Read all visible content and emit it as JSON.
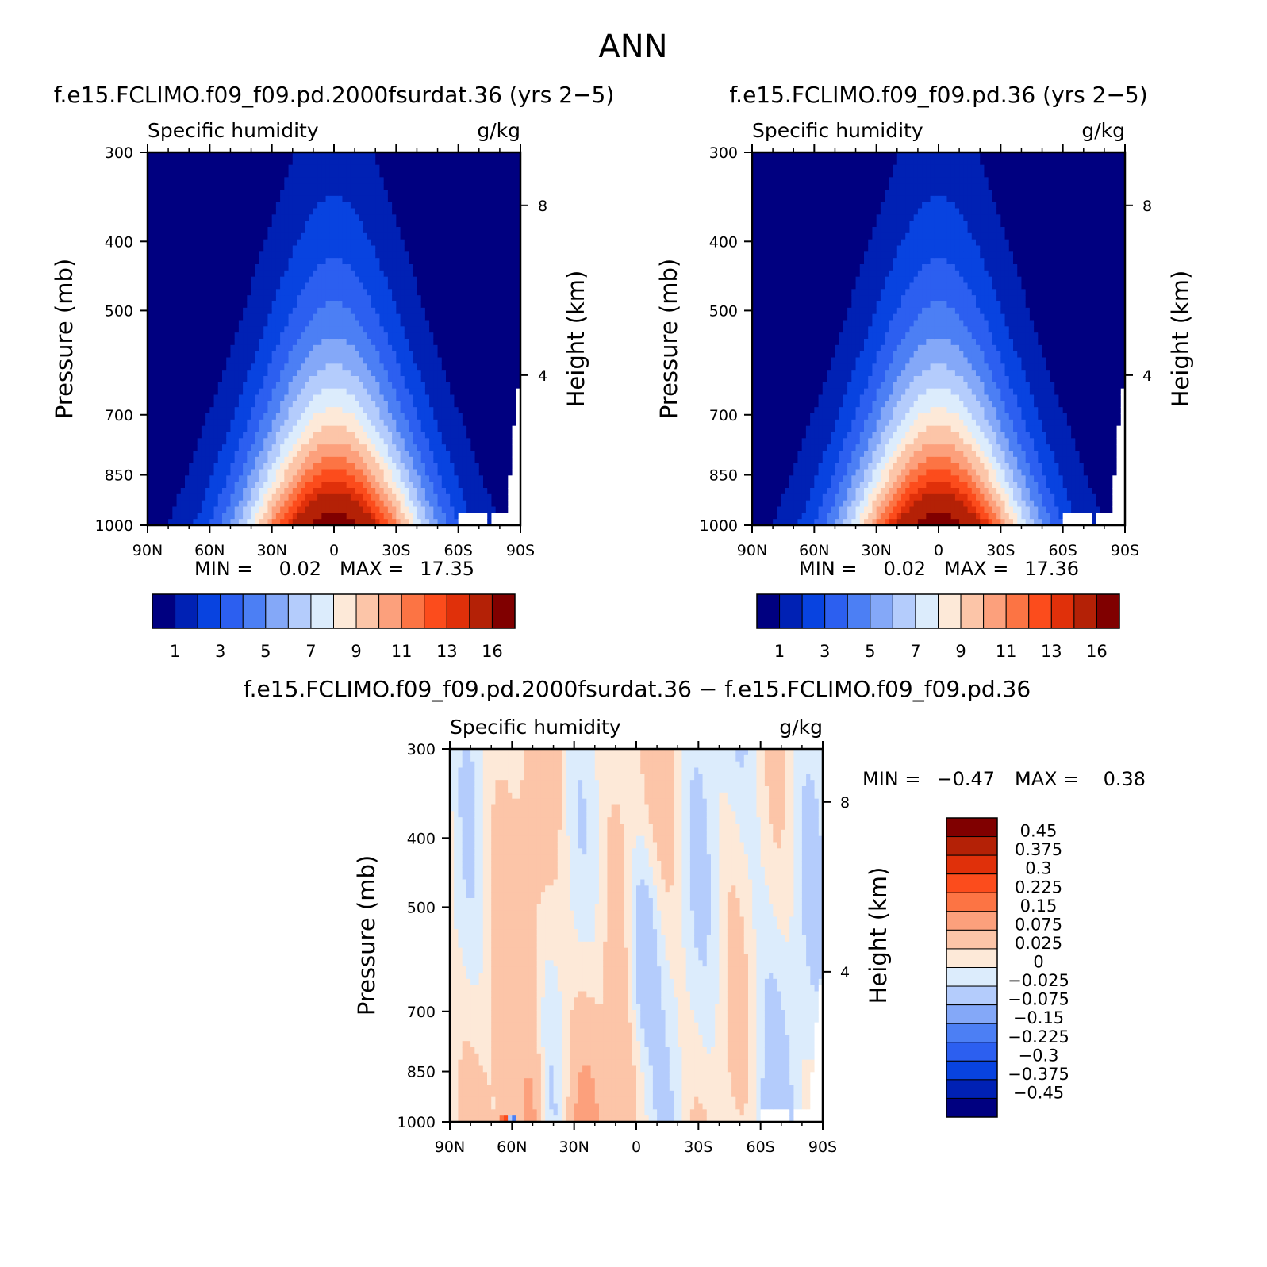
{
  "main_title": "ANN",
  "chart_data": [
    {
      "type": "heatmap",
      "title": "f.e15.FCLIMO.f09_f09.pd.2000fsurdat.36 (yrs 2−5)",
      "subtitle_left": "Specific humidity",
      "subtitle_right": "g/kg",
      "xlabel": "",
      "ylabel": "Pressure (mb)",
      "ylabel_right": "Height (km)",
      "x_ticks": [
        "90N",
        "60N",
        "30N",
        "0",
        "30S",
        "60S",
        "90S"
      ],
      "y_ticks": [
        "300",
        "400",
        "500",
        "700",
        "850",
        "1000"
      ],
      "y2_ticks": [
        "8",
        "4"
      ],
      "xlim": [
        -90,
        90
      ],
      "ylim": [
        1000,
        300
      ],
      "min_label": "MIN =",
      "min_value": "0.02",
      "max_label": "MAX =",
      "max_value": "17.35",
      "colorbar_labels": [
        "1",
        "3",
        "5",
        "7",
        "9",
        "11",
        "13",
        "16"
      ],
      "contour_levels": [
        1,
        2,
        3,
        4,
        5,
        6,
        7,
        8,
        9,
        10,
        11,
        12,
        13,
        14,
        16
      ],
      "field_max_surface": 17.35
    },
    {
      "type": "heatmap",
      "title": "f.e15.FCLIMO.f09_f09.pd.36 (yrs 2−5)",
      "subtitle_left": "Specific humidity",
      "subtitle_right": "g/kg",
      "xlabel": "",
      "ylabel": "Pressure (mb)",
      "ylabel_right": "Height (km)",
      "x_ticks": [
        "90N",
        "60N",
        "30N",
        "0",
        "30S",
        "60S",
        "90S"
      ],
      "y_ticks": [
        "300",
        "400",
        "500",
        "700",
        "850",
        "1000"
      ],
      "y2_ticks": [
        "8",
        "4"
      ],
      "xlim": [
        -90,
        90
      ],
      "ylim": [
        1000,
        300
      ],
      "min_label": "MIN =",
      "min_value": "0.02",
      "max_label": "MAX =",
      "max_value": "17.36",
      "colorbar_labels": [
        "1",
        "3",
        "5",
        "7",
        "9",
        "11",
        "13",
        "16"
      ],
      "contour_levels": [
        1,
        2,
        3,
        4,
        5,
        6,
        7,
        8,
        9,
        10,
        11,
        12,
        13,
        14,
        16
      ],
      "field_max_surface": 17.36
    },
    {
      "type": "heatmap",
      "title": "f.e15.FCLIMO.f09_f09.pd.2000fsurdat.36 − f.e15.FCLIMO.f09_f09.pd.36",
      "subtitle_left": "Specific humidity",
      "subtitle_right": "g/kg",
      "xlabel": "",
      "ylabel": "Pressure (mb)",
      "ylabel_right": "Height (km)",
      "x_ticks": [
        "90N",
        "60N",
        "30N",
        "0",
        "30S",
        "60S",
        "90S"
      ],
      "y_ticks": [
        "300",
        "400",
        "500",
        "700",
        "850",
        "1000"
      ],
      "y2_ticks": [
        "8",
        "4"
      ],
      "xlim": [
        -90,
        90
      ],
      "ylim": [
        1000,
        300
      ],
      "min_label": "MIN =",
      "min_value": "−0.47",
      "max_label": "MAX =",
      "max_value": "0.38",
      "colorbar_labels": [
        "0.45",
        "0.375",
        "0.3",
        "0.225",
        "0.15",
        "0.075",
        "0.025",
        "0",
        "−0.025",
        "−0.075",
        "−0.15",
        "−0.225",
        "−0.3",
        "−0.375",
        "−0.45"
      ],
      "contour_levels": [
        -0.45,
        -0.375,
        -0.3,
        -0.225,
        -0.15,
        -0.075,
        -0.025,
        0,
        0.025,
        0.075,
        0.15,
        0.225,
        0.3,
        0.375,
        0.45
      ]
    }
  ],
  "palette": [
    "#000080",
    "#0021b4",
    "#0843e0",
    "#2c5ff0",
    "#4c7ff4",
    "#84a8f8",
    "#b4ccfc",
    "#dcecfc",
    "#fde9d8",
    "#fcc5a8",
    "#fca07c",
    "#fc7444",
    "#fc4c1c",
    "#e0300a",
    "#b42106",
    "#800000"
  ]
}
